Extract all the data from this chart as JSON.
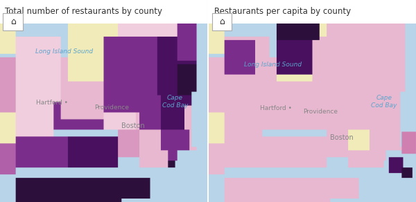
{
  "title_left": "Total number of restaurants by county",
  "title_right": "Restaurants per capita by county",
  "panel_bg": "#ffffff",
  "title_fontsize": 9.5,
  "water_color": [
    184,
    212,
    232
  ],
  "border_color": [
    160,
    160,
    160
  ],
  "home_box_color": "#ffffff",
  "label_water_color": "#5ba4cc",
  "label_city_color": "#888888",
  "divider_color": "#cccccc",
  "left_labels_water": [
    {
      "text": "Cape\nCod Bay",
      "xf": 0.845,
      "yf": 0.56,
      "size": 6.5
    },
    {
      "text": "Long Island Sound",
      "xf": 0.31,
      "yf": 0.84,
      "size": 6.5
    }
  ],
  "left_labels_city": [
    {
      "text": "Boston",
      "xf": 0.585,
      "yf": 0.425,
      "size": 7
    },
    {
      "text": "Hartford •",
      "xf": 0.175,
      "yf": 0.555,
      "size": 6.5
    },
    {
      "text": "Providence",
      "xf": 0.455,
      "yf": 0.53,
      "size": 6.5
    }
  ],
  "right_labels_water": [
    {
      "text": "Cape\nCod Bay",
      "xf": 0.845,
      "yf": 0.56,
      "size": 6.5
    },
    {
      "text": "Long Island Sound",
      "xf": 0.31,
      "yf": 0.77,
      "size": 6.5
    }
  ],
  "right_labels_city": [
    {
      "text": "Boston",
      "xf": 0.585,
      "yf": 0.36,
      "size": 7
    },
    {
      "text": "Hartford •",
      "xf": 0.245,
      "yf": 0.525,
      "size": 6.5
    },
    {
      "text": "Providence",
      "xf": 0.455,
      "yf": 0.505,
      "size": 6.5
    }
  ]
}
